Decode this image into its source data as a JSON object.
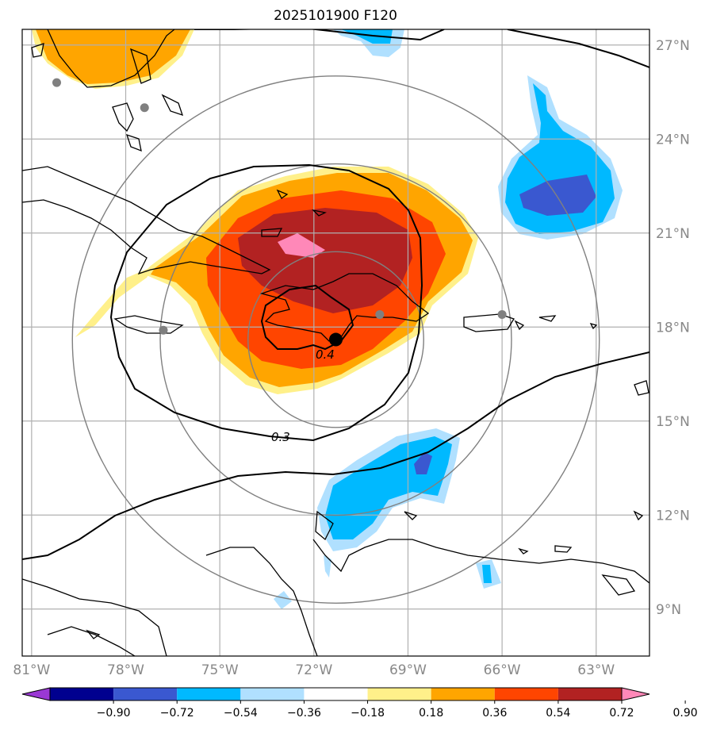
{
  "title": "2025101900 F120",
  "map": {
    "lon_ticks": [
      {
        "lon": -81,
        "label": "81°W"
      },
      {
        "lon": -78,
        "label": "78°W"
      },
      {
        "lon": -75,
        "label": "75°W"
      },
      {
        "lon": -72,
        "label": "72°W"
      },
      {
        "lon": -69,
        "label": "69°W"
      },
      {
        "lon": -66,
        "label": "66°W"
      },
      {
        "lon": -63,
        "label": "63°W"
      }
    ],
    "lat_ticks": [
      {
        "lat": 27,
        "label": "27°N"
      },
      {
        "lat": 24,
        "label": "24°N"
      },
      {
        "lat": 21,
        "label": "21°N"
      },
      {
        "lat": 18,
        "label": "18°N"
      },
      {
        "lat": 15,
        "label": "15°N"
      },
      {
        "lat": 12,
        "label": "12°N"
      },
      {
        "lat": 9,
        "label": "9°N"
      }
    ],
    "lon_range": [
      -81.3,
      -61.3
    ],
    "lat_range": [
      7.5,
      27.5
    ],
    "center_marker": {
      "lon": -71.3,
      "lat": 17.6
    },
    "stations": [
      {
        "lon": -80.2,
        "lat": 25.8
      },
      {
        "lon": -77.4,
        "lat": 25.0
      },
      {
        "lon": -76.8,
        "lat": 17.9
      },
      {
        "lon": -69.9,
        "lat": 18.4
      },
      {
        "lon": -66.0,
        "lat": 18.4
      }
    ],
    "range_rings_deg": [
      2.8,
      5.6,
      8.4
    ],
    "contour_labels": [
      {
        "text": "0.4",
        "lon": -71.5,
        "lat": 17.0
      },
      {
        "text": "0.3",
        "lon": -73.4,
        "lat": 14.6
      }
    ]
  },
  "colorbar": {
    "colors": [
      "#9a38d4",
      "#00008f",
      "#3a58d0",
      "#00b9ff",
      "#b0e0ff",
      "#ffffff",
      "#fff08a",
      "#ffa500",
      "#ff4500",
      "#b22222",
      "#ff88b8"
    ],
    "labels": [
      "−0.90",
      "−0.72",
      "−0.54",
      "−0.36",
      "−0.18",
      "0.18",
      "0.36",
      "0.54",
      "0.72",
      "0.90"
    ]
  },
  "legend_colors": {
    "positive_light": "#fff08a",
    "orange": "#ffa500",
    "red_orange": "#ff4500",
    "dark_red": "#b22222",
    "pink": "#ff88b8",
    "light_blue": "#b0e0ff",
    "cyan": "#00b9ff",
    "blue": "#3a58d0"
  }
}
